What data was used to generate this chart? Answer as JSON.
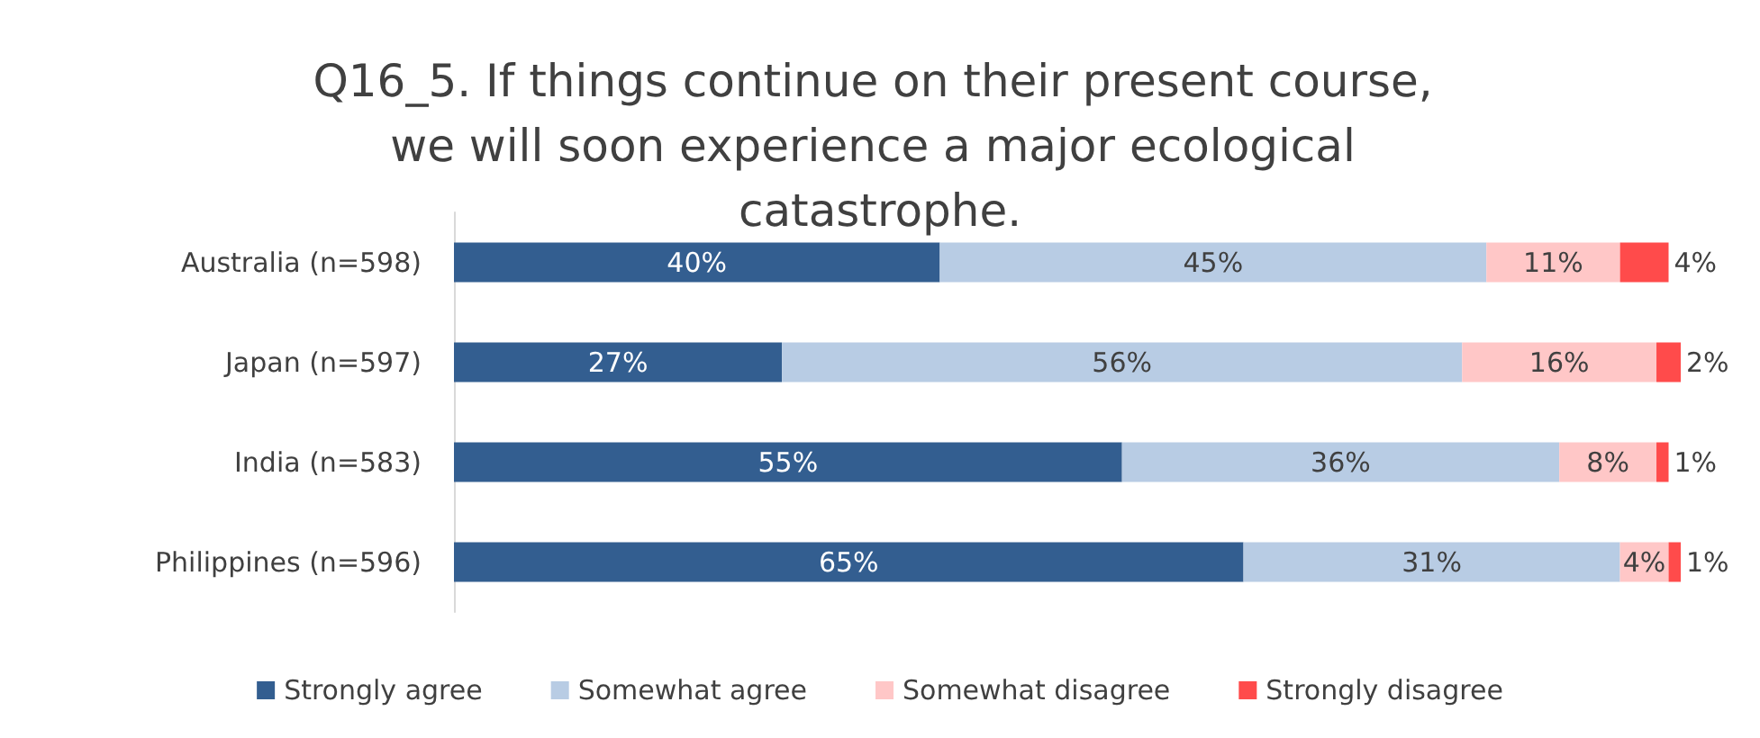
{
  "chart_data": {
    "type": "bar",
    "orientation": "horizontal",
    "stacked": true,
    "title": "Q16_5. If things continue on their present course, we will soon experience a major ecological catastrophe.",
    "categories": [
      "Australia (n=598)",
      "Japan (n=597)",
      "India (n=583)",
      "Philippines (n=596)"
    ],
    "xlim": [
      0,
      101
    ],
    "tick_labels": "y",
    "grid": false,
    "legend": "bottom",
    "series": [
      {
        "name": "Strongly agree",
        "color": "#335e90",
        "values": [
          40,
          27,
          55,
          65
        ],
        "value_labels": [
          "40%",
          "27%",
          "55%",
          "65%"
        ]
      },
      {
        "name": "Somewhat agree",
        "color": "#b8cce4",
        "values": [
          45,
          56,
          36,
          31
        ],
        "value_labels": [
          "45%",
          "56%",
          "36%",
          "31%"
        ]
      },
      {
        "name": "Somewhat disagree",
        "color": "#ffc7c7",
        "values": [
          11,
          16,
          8,
          4
        ],
        "value_labels": [
          "11%",
          "16%",
          "8%",
          "4%"
        ]
      },
      {
        "name": "Strongly disagree",
        "color": "#ff4b4b",
        "values": [
          4,
          2,
          1,
          1
        ],
        "value_labels": [
          "4%",
          "2%",
          "1%",
          "1%"
        ]
      }
    ]
  }
}
